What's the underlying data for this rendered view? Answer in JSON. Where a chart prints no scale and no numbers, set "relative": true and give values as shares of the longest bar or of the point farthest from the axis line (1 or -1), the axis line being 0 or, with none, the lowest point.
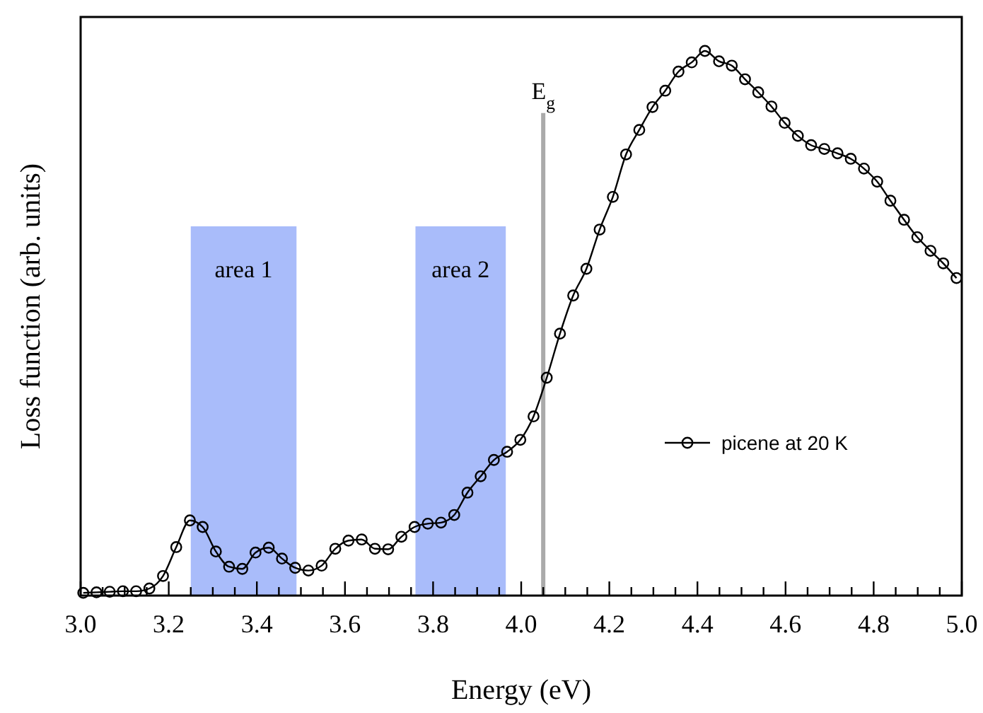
{
  "chart_data": {
    "type": "line",
    "xlabel": "Energy (eV)",
    "ylabel": "Loss function (arb. units)",
    "relative": true,
    "marker": "circle",
    "line_style": "solid",
    "legend": "right",
    "grid": false,
    "xlim": [
      3.0,
      5.0
    ],
    "xticks": [
      {
        "value": 3.0,
        "label": "3.0"
      },
      {
        "value": 3.05,
        "label": null
      },
      {
        "value": 3.1,
        "label": null
      },
      {
        "value": 3.15,
        "label": null
      },
      {
        "value": 3.2,
        "label": "3.2"
      },
      {
        "value": 3.25,
        "label": null
      },
      {
        "value": 3.3,
        "label": null
      },
      {
        "value": 3.35,
        "label": null
      },
      {
        "value": 3.4,
        "label": "3.4"
      },
      {
        "value": 3.45,
        "label": null
      },
      {
        "value": 3.5,
        "label": null
      },
      {
        "value": 3.55,
        "label": null
      },
      {
        "value": 3.6,
        "label": "3.6"
      },
      {
        "value": 3.65,
        "label": null
      },
      {
        "value": 3.7,
        "label": null
      },
      {
        "value": 3.75,
        "label": null
      },
      {
        "value": 3.8,
        "label": "3.8"
      },
      {
        "value": 3.85,
        "label": null
      },
      {
        "value": 3.9,
        "label": null
      },
      {
        "value": 3.95,
        "label": null
      },
      {
        "value": 4.0,
        "label": "4.0"
      },
      {
        "value": 4.05,
        "label": null
      },
      {
        "value": 4.1,
        "label": null
      },
      {
        "value": 4.15,
        "label": null
      },
      {
        "value": 4.2,
        "label": "4.2"
      },
      {
        "value": 4.25,
        "label": null
      },
      {
        "value": 4.3,
        "label": null
      },
      {
        "value": 4.35,
        "label": null
      },
      {
        "value": 4.4,
        "label": "4.4"
      },
      {
        "value": 4.45,
        "label": null
      },
      {
        "value": 4.5,
        "label": null
      },
      {
        "value": 4.55,
        "label": null
      },
      {
        "value": 4.6,
        "label": "4.6"
      },
      {
        "value": 4.65,
        "label": null
      },
      {
        "value": 4.7,
        "label": null
      },
      {
        "value": 4.75,
        "label": null
      },
      {
        "value": 4.8,
        "label": "4.8"
      },
      {
        "value": 4.85,
        "label": null
      },
      {
        "value": 4.9,
        "label": null
      },
      {
        "value": 4.95,
        "label": null
      },
      {
        "value": 5.0,
        "label": "5.0"
      }
    ],
    "bands": [
      {
        "axis": "x",
        "from": 3.25,
        "to": 3.49,
        "label": "area 1",
        "color": "#a9bcfa"
      },
      {
        "axis": "x",
        "from": 3.76,
        "to": 3.965,
        "label": "area 2",
        "color": "#a9bcfa"
      }
    ],
    "ref_lines": [
      {
        "axis": "x",
        "value": 4.05,
        "label": "E$_{g}$",
        "color": "#aaaaaa"
      }
    ],
    "series": [
      {
        "name": "picene at 20 K",
        "color": "#000000",
        "x": [
          3.006,
          3.036,
          3.066,
          3.096,
          3.126,
          3.156,
          3.187,
          3.217,
          3.248,
          3.277,
          3.307,
          3.337,
          3.367,
          3.397,
          3.427,
          3.457,
          3.487,
          3.517,
          3.547,
          3.578,
          3.608,
          3.638,
          3.668,
          3.698,
          3.728,
          3.758,
          3.788,
          3.818,
          3.848,
          3.878,
          3.908,
          3.938,
          3.968,
          3.998,
          4.028,
          4.058,
          4.088,
          4.118,
          4.148,
          4.178,
          4.208,
          4.238,
          4.268,
          4.298,
          4.327,
          4.357,
          4.387,
          4.417,
          4.449,
          4.478,
          4.508,
          4.538,
          4.568,
          4.598,
          4.628,
          4.658,
          4.688,
          4.718,
          4.748,
          4.778,
          4.808,
          4.838,
          4.869,
          4.899,
          4.929,
          4.958,
          4.988
        ],
        "values": [
          0.005,
          0.006,
          0.007,
          0.008,
          0.008,
          0.013,
          0.036,
          0.089,
          0.138,
          0.126,
          0.081,
          0.053,
          0.049,
          0.079,
          0.088,
          0.068,
          0.051,
          0.046,
          0.055,
          0.086,
          0.101,
          0.103,
          0.086,
          0.085,
          0.108,
          0.126,
          0.132,
          0.134,
          0.148,
          0.189,
          0.219,
          0.249,
          0.264,
          0.286,
          0.329,
          0.4,
          0.481,
          0.551,
          0.6,
          0.672,
          0.732,
          0.81,
          0.855,
          0.897,
          0.927,
          0.962,
          0.979,
          1,
          0.981,
          0.973,
          0.948,
          0.924,
          0.898,
          0.868,
          0.844,
          0.827,
          0.82,
          0.812,
          0.802,
          0.784,
          0.76,
          0.725,
          0.69,
          0.658,
          0.633,
          0.61,
          0.583
        ]
      }
    ]
  }
}
